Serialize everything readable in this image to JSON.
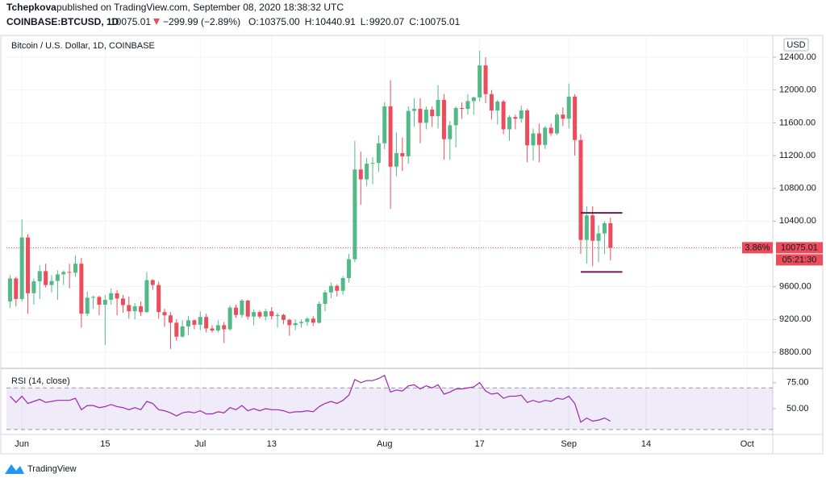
{
  "header": {
    "author": "Tchepkova",
    "published": "published on TradingView.com, September 08, 2020 18:38:32 UTC",
    "symbol": "COINBASE:BTCUSD, 1D",
    "last": "10075.01",
    "change": "−299.99 (−2.89%)",
    "ohlc": [
      {
        "label": "O:",
        "value": "10375.00"
      },
      {
        "label": "H:",
        "value": "10440.91"
      },
      {
        "label": "L:",
        "value": "9920.07"
      },
      {
        "label": "C:",
        "value": "10075.01"
      }
    ]
  },
  "footer": {
    "brand": "TradingView"
  },
  "chart_data": [
    {
      "type": "candlestick",
      "title": "Bitcoin / U.S. Dollar, 1D, COINBASE",
      "currency": "USD",
      "up_color": "#53b987",
      "down_color": "#eb4d5c",
      "grid": true,
      "change_label": "3.86%",
      "price_label": "10075.01",
      "countdown": "05:21:30",
      "levels": [
        10500,
        9780
      ],
      "level_color": "#6a1b4d",
      "x": [
        -2,
        -1,
        0,
        1,
        2,
        3,
        4,
        5,
        6,
        7,
        8,
        9,
        10,
        11,
        12,
        13,
        14,
        15,
        16,
        17,
        18,
        19,
        20,
        21,
        22,
        23,
        24,
        25,
        26,
        27,
        28,
        29,
        30,
        31,
        32,
        33,
        34,
        35,
        36,
        37,
        38,
        39,
        40,
        41,
        42,
        43,
        44,
        45,
        46,
        47,
        48,
        49,
        50,
        51,
        52,
        53,
        54,
        55,
        56,
        57,
        58,
        59,
        60,
        61,
        62,
        63,
        64,
        65,
        66,
        67,
        68,
        69,
        70,
        71,
        72,
        73,
        74,
        75,
        76,
        77,
        78,
        79,
        80,
        81,
        82,
        83,
        84,
        85,
        86,
        87,
        88,
        89,
        90,
        91,
        92,
        93,
        94,
        95,
        96,
        97,
        98,
        99
      ],
      "open": [
        9420,
        9700,
        9450,
        10200,
        9520,
        9665,
        9790,
        9620,
        9670,
        9750,
        9780,
        9770,
        9880,
        9270,
        9465,
        9475,
        9380,
        9440,
        9520,
        9455,
        9375,
        9300,
        9360,
        9290,
        9680,
        9620,
        9290,
        9250,
        9160,
        8990,
        9115,
        9190,
        9135,
        9230,
        9090,
        9065,
        9130,
        9080,
        9345,
        9255,
        9430,
        9235,
        9290,
        9235,
        9300,
        9240,
        9255,
        9195,
        9130,
        9155,
        9170,
        9210,
        9160,
        9390,
        9530,
        9610,
        9550,
        9705,
        9935,
        11030,
        10910,
        11100,
        11110,
        11350,
        11800,
        11065,
        11230,
        11190,
        11745,
        11770,
        11600,
        11760,
        11680,
        11880,
        11400,
        11570,
        11780,
        11770,
        11865,
        11910,
        12300,
        11950,
        11750,
        11860,
        11520,
        11670,
        11650,
        11750,
        11325,
        11470,
        11330,
        11540,
        11470,
        11700,
        11650,
        11920,
        11390,
        10170,
        10470,
        10160,
        10250,
        10375
      ],
      "high": [
        9740,
        9720,
        10420,
        10240,
        9700,
        9860,
        9880,
        9740,
        9800,
        9800,
        9880,
        9980,
        9950,
        9540,
        9490,
        9490,
        9500,
        9580,
        9560,
        9500,
        9480,
        9400,
        9420,
        9780,
        9690,
        9660,
        9330,
        9290,
        9200,
        9190,
        9240,
        9200,
        9300,
        9270,
        9130,
        9190,
        9170,
        9370,
        9380,
        9450,
        9440,
        9320,
        9310,
        9330,
        9350,
        9280,
        9270,
        9210,
        9200,
        9200,
        9230,
        9240,
        9420,
        9560,
        9650,
        9630,
        9730,
        10000,
        11380,
        11250,
        11170,
        11180,
        11450,
        11850,
        12120,
        11480,
        11420,
        11800,
        11900,
        11900,
        11800,
        11800,
        12060,
        11950,
        11620,
        11800,
        11850,
        11950,
        11920,
        12480,
        12400,
        12000,
        11880,
        11880,
        11690,
        11700,
        11810,
        11770,
        11530,
        11590,
        11560,
        11590,
        11720,
        11790,
        12080,
        11950,
        11460,
        10580,
        10580,
        10350,
        10400,
        10440.91
      ],
      "low": [
        9340,
        9360,
        9420,
        9270,
        9380,
        9450,
        9590,
        9530,
        9440,
        9620,
        9580,
        9720,
        9100,
        9240,
        9330,
        9250,
        8890,
        9380,
        9250,
        9280,
        9210,
        9200,
        9240,
        9280,
        9560,
        9210,
        9110,
        8840,
        8940,
        8980,
        9010,
        9080,
        9070,
        9040,
        9040,
        9040,
        8910,
        9060,
        9220,
        9220,
        9200,
        9130,
        9210,
        9190,
        9200,
        9100,
        9140,
        9000,
        9070,
        9100,
        9120,
        9120,
        9150,
        9300,
        9460,
        9480,
        9500,
        9650,
        9900,
        10600,
        10830,
        10850,
        11000,
        11280,
        10550,
        10950,
        11010,
        11100,
        11550,
        11350,
        11520,
        11550,
        11530,
        11150,
        11150,
        11300,
        11650,
        11700,
        11700,
        11860,
        11840,
        11640,
        11580,
        11460,
        11380,
        11520,
        11600,
        11120,
        11140,
        11120,
        11280,
        11440,
        11450,
        11560,
        11530,
        11200,
        10000,
        9880,
        9850,
        9900,
        10000,
        9920.07
      ],
      "close": [
        9700,
        9450,
        10200,
        9520,
        9665,
        9790,
        9620,
        9670,
        9750,
        9780,
        9770,
        9880,
        9270,
        9465,
        9475,
        9380,
        9440,
        9520,
        9455,
        9375,
        9300,
        9360,
        9290,
        9680,
        9620,
        9290,
        9250,
        9160,
        8990,
        9115,
        9190,
        9135,
        9230,
        9090,
        9065,
        9130,
        9080,
        9345,
        9255,
        9430,
        9235,
        9290,
        9235,
        9300,
        9240,
        9255,
        9195,
        9130,
        9155,
        9170,
        9210,
        9160,
        9390,
        9530,
        9610,
        9550,
        9705,
        9935,
        11030,
        10910,
        11100,
        11110,
        11350,
        11800,
        11065,
        11230,
        11190,
        11745,
        11770,
        11600,
        11760,
        11680,
        11880,
        11400,
        11570,
        11780,
        11770,
        11865,
        11910,
        12300,
        11950,
        11750,
        11860,
        11520,
        11670,
        11650,
        11750,
        11325,
        11470,
        11330,
        11540,
        11470,
        11700,
        11650,
        11920,
        11390,
        10170,
        10470,
        10160,
        10250,
        10375,
        10075.01
      ],
      "xlim": [
        -2.6,
        126.3
      ],
      "xticks": [
        {
          "value": 0,
          "label": "Jun"
        },
        {
          "value": 14,
          "label": "15"
        },
        {
          "value": 30,
          "label": "Jul"
        },
        {
          "value": 42,
          "label": "13"
        },
        {
          "value": 61,
          "label": "Aug"
        },
        {
          "value": 77,
          "label": "17"
        },
        {
          "value": 92,
          "label": "Sep"
        },
        {
          "value": 105,
          "label": "14"
        },
        {
          "value": 122,
          "label": "Oct"
        }
      ],
      "ylim": [
        8613,
        12656
      ],
      "yticks": [
        {
          "value": 8800,
          "label": "8800.00"
        },
        {
          "value": 9200,
          "label": "9200.00"
        },
        {
          "value": 9600,
          "label": "9600.00"
        },
        {
          "value": 10400,
          "label": "10400.00"
        },
        {
          "value": 10800,
          "label": "10800.00"
        },
        {
          "value": 11200,
          "label": "11200.00"
        },
        {
          "value": 11600,
          "label": "11600.00"
        },
        {
          "value": 12000,
          "label": "12000.00"
        },
        {
          "value": 12400,
          "label": "12400.00"
        }
      ]
    },
    {
      "type": "line",
      "title": "RSI (14, close)",
      "color": "#9c27b0",
      "band": [
        30,
        70
      ],
      "band_color": "#7e57c2",
      "x": [
        -2,
        -1,
        0,
        1,
        2,
        3,
        4,
        5,
        6,
        7,
        8,
        9,
        10,
        11,
        12,
        13,
        14,
        15,
        16,
        17,
        18,
        19,
        20,
        21,
        22,
        23,
        24,
        25,
        26,
        27,
        28,
        29,
        30,
        31,
        32,
        33,
        34,
        35,
        36,
        37,
        38,
        39,
        40,
        41,
        42,
        43,
        44,
        45,
        46,
        47,
        48,
        49,
        50,
        51,
        52,
        53,
        54,
        55,
        56,
        57,
        58,
        59,
        60,
        61,
        62,
        63,
        64,
        65,
        66,
        67,
        68,
        69,
        70,
        71,
        72,
        73,
        74,
        75,
        76,
        77,
        78,
        79,
        80,
        81,
        82,
        83,
        84,
        85,
        86,
        87,
        88,
        89,
        90,
        91,
        92,
        93,
        94,
        95,
        96,
        97,
        98,
        99
      ],
      "values": [
        62,
        56,
        62,
        55,
        57,
        59,
        56,
        57,
        58,
        58,
        58,
        60,
        49,
        53,
        53,
        51,
        52,
        54,
        52,
        51,
        49,
        51,
        49,
        57,
        55,
        49,
        48,
        46,
        43,
        46,
        47,
        46,
        48,
        45,
        45,
        47,
        46,
        51,
        49,
        53,
        48,
        50,
        48,
        50,
        49,
        49,
        48,
        46,
        47,
        47,
        48,
        47,
        52,
        55,
        57,
        55,
        58,
        63,
        78,
        75,
        77,
        77,
        79,
        82,
        66,
        68,
        67,
        72,
        73,
        69,
        72,
        70,
        73,
        64,
        66,
        69,
        69,
        70,
        71,
        75,
        67,
        64,
        65,
        60,
        62,
        62,
        63,
        56,
        58,
        56,
        58,
        57,
        60,
        59,
        62,
        55,
        37,
        41,
        38,
        39,
        41,
        38
      ],
      "xlim": [
        -2.6,
        126.3
      ],
      "ylim": [
        26,
        88
      ],
      "yticks": [
        {
          "value": 50,
          "label": "50.00"
        },
        {
          "value": 75,
          "label": "75.00"
        }
      ]
    }
  ]
}
